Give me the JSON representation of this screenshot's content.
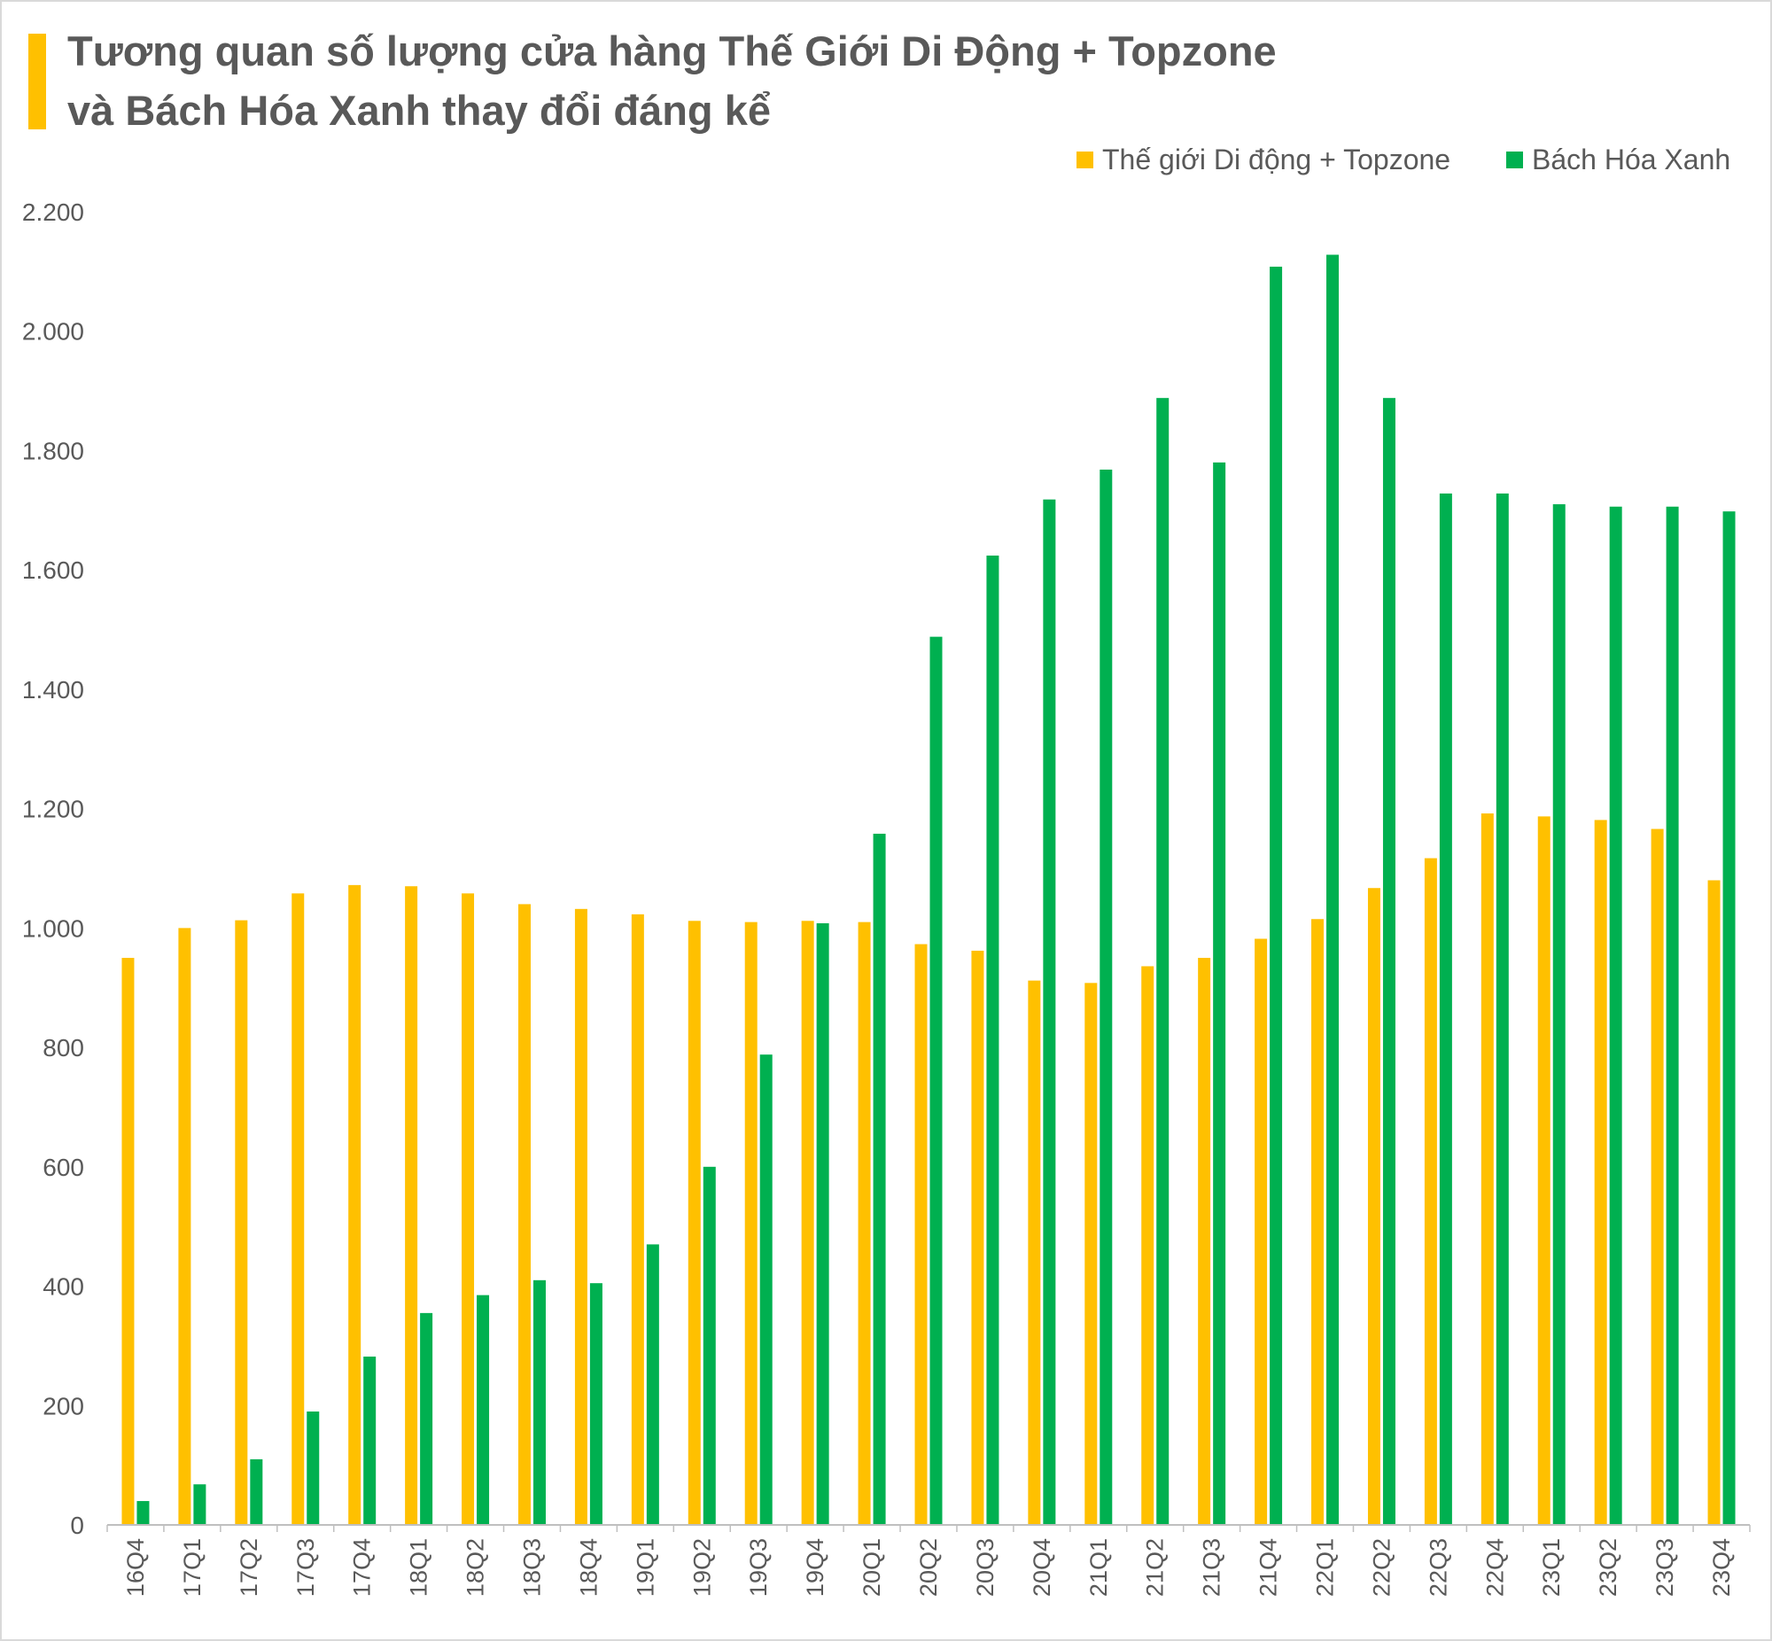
{
  "title_line1": "Tương quan số lượng cửa hàng Thế Giới Di Động + Topzone",
  "title_line2": "và Bách Hóa Xanh thay đổi đáng kể",
  "colors": {
    "tgdd": "#ffc000",
    "bhx": "#00b050",
    "axis": "#bfbfbf",
    "title_accent": "#ffc000"
  },
  "chart_data": {
    "type": "bar",
    "title": "Tương quan số lượng cửa hàng Thế Giới Di Động + Topzone và Bách Hóa Xanh thay đổi đáng kể",
    "xlabel": "",
    "ylabel": "",
    "ylim": [
      0,
      2200
    ],
    "yticks": [
      0,
      200,
      400,
      600,
      800,
      1000,
      1200,
      1400,
      1600,
      1800,
      2000,
      2200
    ],
    "ytick_labels": [
      "0",
      "200",
      "400",
      "600",
      "800",
      "1.000",
      "1.200",
      "1.400",
      "1.600",
      "1.800",
      "2.000",
      "2.200"
    ],
    "grid": false,
    "legend_position": "top-right",
    "categories": [
      "16Q4",
      "17Q1",
      "17Q2",
      "17Q3",
      "17Q4",
      "18Q1",
      "18Q2",
      "18Q3",
      "18Q4",
      "19Q1",
      "19Q2",
      "19Q3",
      "19Q4",
      "20Q1",
      "20Q2",
      "20Q3",
      "20Q4",
      "21Q1",
      "21Q2",
      "21Q3",
      "21Q4",
      "22Q1",
      "22Q2",
      "22Q3",
      "22Q4",
      "23Q1",
      "23Q2",
      "23Q3",
      "23Q4"
    ],
    "series": [
      {
        "name": "Thế giới Di động + Topzone",
        "values": [
          950,
          1000,
          1013,
          1058,
          1072,
          1070,
          1058,
          1040,
          1032,
          1023,
          1012,
          1010,
          1012,
          1010,
          973,
          962,
          912,
          908,
          936,
          950,
          982,
          1015,
          1067,
          1117,
          1192,
          1187,
          1181,
          1166,
          1080
        ]
      },
      {
        "name": "Bách Hóa Xanh",
        "values": [
          40,
          68,
          110,
          190,
          282,
          355,
          385,
          410,
          405,
          470,
          600,
          788,
          1008,
          1158,
          1488,
          1624,
          1718,
          1768,
          1888,
          1780,
          2108,
          2128,
          1888,
          1728,
          1728,
          1710,
          1706,
          1706,
          1698
        ]
      }
    ]
  }
}
